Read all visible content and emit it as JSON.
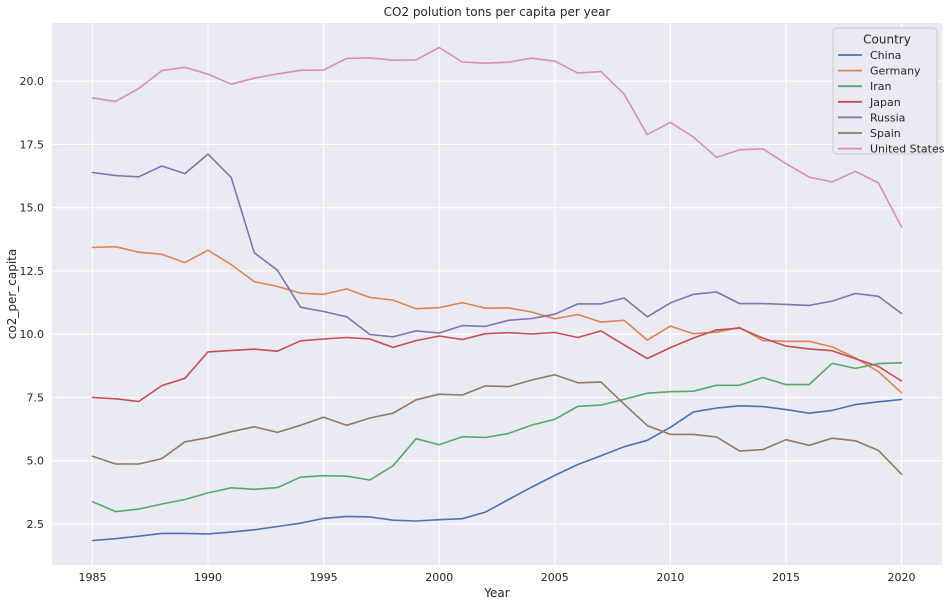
{
  "chart_data": {
    "type": "line",
    "title": "CO2 polution tons per capita per year",
    "xlabel": "Year",
    "ylabel": "co2_per_capita",
    "xlim": [
      1983.25,
      2021.75
    ],
    "ylim": [
      0.88,
      22.3
    ],
    "xticks": [
      1985,
      1990,
      1995,
      2000,
      2005,
      2010,
      2015,
      2020
    ],
    "yticks": [
      2.5,
      5.0,
      7.5,
      10.0,
      12.5,
      15.0,
      17.5,
      20.0
    ],
    "ytick_labels": [
      "2.5",
      "5.0",
      "7.5",
      "10.0",
      "12.5",
      "15.0",
      "17.5",
      "20.0"
    ],
    "grid": true,
    "background": "#eaeaf2",
    "legend_title": "Country",
    "legend_position": "top-right",
    "x": [
      1985,
      1986,
      1987,
      1988,
      1989,
      1990,
      1991,
      1992,
      1993,
      1994,
      1995,
      1996,
      1997,
      1998,
      1999,
      2000,
      2001,
      2002,
      2003,
      2004,
      2005,
      2006,
      2007,
      2008,
      2009,
      2010,
      2011,
      2012,
      2013,
      2014,
      2015,
      2016,
      2017,
      2018,
      2019,
      2020
    ],
    "series": [
      {
        "name": "China",
        "color": "#4c72b0",
        "values": [
          1.85,
          1.92,
          2.02,
          2.13,
          2.13,
          2.11,
          2.18,
          2.27,
          2.4,
          2.53,
          2.72,
          2.8,
          2.78,
          2.65,
          2.62,
          2.67,
          2.71,
          2.97,
          3.47,
          3.96,
          4.42,
          4.85,
          5.2,
          5.55,
          5.81,
          6.32,
          6.93,
          7.08,
          7.17,
          7.14,
          7.02,
          6.88,
          6.99,
          7.22,
          7.33,
          7.42
        ]
      },
      {
        "name": "Germany",
        "color": "#dd8452",
        "values": [
          13.43,
          13.46,
          13.24,
          13.16,
          12.83,
          13.32,
          12.75,
          12.08,
          11.89,
          11.62,
          11.58,
          11.79,
          11.45,
          11.35,
          11.01,
          11.05,
          11.25,
          11.03,
          11.04,
          10.88,
          10.61,
          10.78,
          10.48,
          10.55,
          9.77,
          10.32,
          10.02,
          10.08,
          10.27,
          9.75,
          9.72,
          9.72,
          9.5,
          9.07,
          8.52,
          7.69
        ]
      },
      {
        "name": "Iran",
        "color": "#55a868",
        "values": [
          3.38,
          2.99,
          3.09,
          3.29,
          3.47,
          3.73,
          3.93,
          3.87,
          3.94,
          4.35,
          4.41,
          4.39,
          4.24,
          4.8,
          5.87,
          5.63,
          5.95,
          5.92,
          6.08,
          6.41,
          6.64,
          7.15,
          7.2,
          7.43,
          7.67,
          7.73,
          7.75,
          7.98,
          7.98,
          8.29,
          8.01,
          8.01,
          8.85,
          8.65,
          8.84,
          8.87
        ]
      },
      {
        "name": "Japan",
        "color": "#c44e52",
        "values": [
          7.5,
          7.45,
          7.34,
          7.97,
          8.26,
          9.3,
          9.36,
          9.41,
          9.33,
          9.74,
          9.81,
          9.87,
          9.81,
          9.48,
          9.75,
          9.93,
          9.79,
          10.02,
          10.06,
          10.01,
          10.07,
          9.87,
          10.13,
          9.58,
          9.04,
          9.47,
          9.85,
          10.17,
          10.24,
          9.85,
          9.53,
          9.42,
          9.35,
          9.03,
          8.73,
          8.15
        ]
      },
      {
        "name": "Russia",
        "color": "#8172b3",
        "values": [
          16.39,
          16.27,
          16.22,
          16.65,
          16.35,
          17.12,
          16.2,
          13.22,
          12.53,
          11.07,
          10.9,
          10.69,
          9.99,
          9.9,
          10.13,
          10.05,
          10.34,
          10.31,
          10.55,
          10.62,
          10.79,
          11.2,
          11.2,
          11.43,
          10.69,
          11.24,
          11.58,
          11.67,
          11.21,
          11.21,
          11.18,
          11.14,
          11.31,
          11.61,
          11.5,
          10.82
        ]
      },
      {
        "name": "Spain",
        "color": "#937860",
        "values": [
          5.18,
          4.87,
          4.87,
          5.08,
          5.75,
          5.91,
          6.15,
          6.34,
          6.12,
          6.4,
          6.72,
          6.4,
          6.69,
          6.88,
          7.41,
          7.63,
          7.6,
          7.96,
          7.93,
          8.19,
          8.4,
          8.08,
          8.11,
          7.24,
          6.39,
          6.04,
          6.04,
          5.94,
          5.38,
          5.44,
          5.83,
          5.61,
          5.89,
          5.79,
          5.41,
          4.47
        ]
      },
      {
        "name": "United States",
        "color": "#da8bc3",
        "values": [
          19.34,
          19.2,
          19.71,
          20.42,
          20.55,
          20.28,
          19.88,
          20.12,
          20.29,
          20.43,
          20.44,
          20.9,
          20.92,
          20.83,
          20.84,
          21.33,
          20.76,
          20.71,
          20.75,
          20.91,
          20.79,
          20.32,
          20.38,
          19.49,
          17.89,
          18.37,
          17.79,
          16.99,
          17.29,
          17.33,
          16.74,
          16.21,
          16.02,
          16.44,
          15.98,
          14.24
        ]
      }
    ]
  }
}
